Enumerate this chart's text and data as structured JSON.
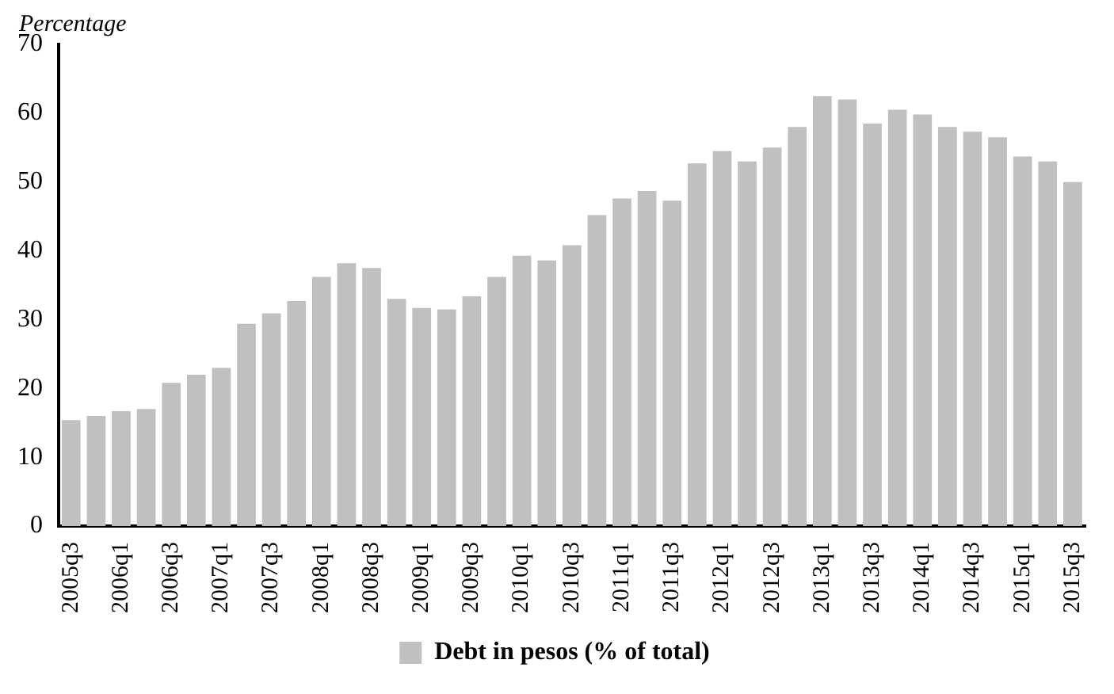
{
  "chart_data": {
    "type": "bar",
    "ylabel": "Percentage",
    "categories": [
      "2005q3",
      null,
      "2006q1",
      null,
      "2006q3",
      null,
      "2007q1",
      null,
      "2007q3",
      null,
      "2008q1",
      null,
      "2008q3",
      null,
      "2009q1",
      null,
      "2009q3",
      null,
      "2010q1",
      null,
      "2010q3",
      null,
      "2011q1",
      null,
      "2011q3",
      null,
      "2012q1",
      null,
      "2012q3",
      null,
      "2013q1",
      null,
      "2013q3",
      null,
      "2014q1",
      null,
      "2014q3",
      null,
      "2015q1",
      null,
      "2015q3"
    ],
    "series": [
      {
        "name": "Debt in pesos (% of total)",
        "color": "#bfc0c2",
        "values": [
          15.4,
          16.0,
          16.7,
          17.0,
          20.8,
          22.0,
          23.0,
          29.4,
          30.9,
          32.7,
          36.2,
          38.2,
          37.5,
          33.0,
          31.7,
          31.5,
          33.4,
          36.2,
          39.3,
          38.6,
          40.8,
          45.2,
          47.6,
          48.7,
          47.3,
          52.7,
          54.5,
          53.0,
          55.0,
          58.0,
          62.5,
          62.0,
          58.5,
          60.5,
          59.8,
          58.0,
          57.3,
          56.5,
          53.7,
          53.0,
          50.0
        ]
      }
    ],
    "ylim": [
      0,
      70
    ],
    "yticks": [
      0,
      10,
      20,
      30,
      40,
      50,
      60,
      70
    ],
    "grid": false,
    "legend": "bottom"
  }
}
